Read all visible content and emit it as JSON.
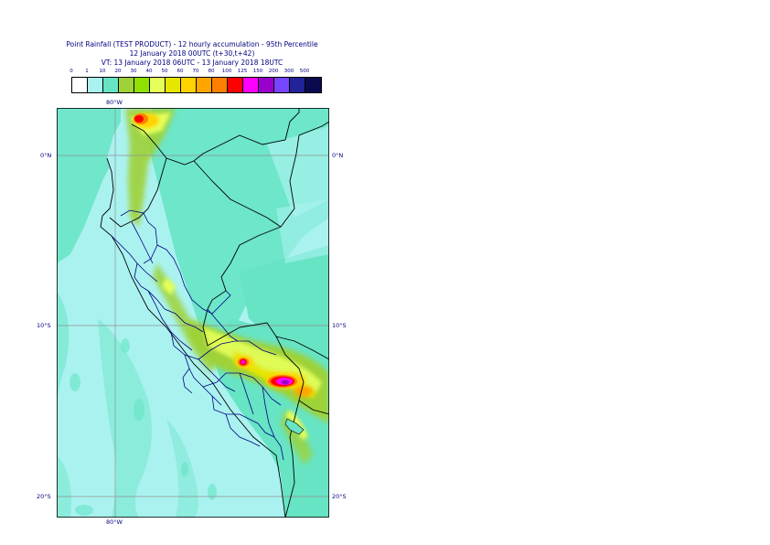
{
  "title": {
    "line1": "Point Rainfall (TEST PRODUCT) - 12 hourly accumulation - 95th Percentile",
    "line2": "12 January 2018 00UTC (t+30,t+42)",
    "line3": "VT: 13 January 2018 06UTC - 13 January 2018 18UTC"
  },
  "legend": {
    "labels": [
      "0",
      "1",
      "10",
      "20",
      "30",
      "40",
      "50",
      "60",
      "70",
      "80",
      "100",
      "125",
      "150",
      "200",
      "300",
      "500"
    ],
    "colors": [
      "#ffffff",
      "#aaf2f0",
      "#66e4c4",
      "#9ed237",
      "#8fe100",
      "#e6ff5a",
      "#e6e600",
      "#ffd200",
      "#ffa500",
      "#ff8000",
      "#ff0000",
      "#ff00ff",
      "#9900cc",
      "#7744ff",
      "#222299",
      "#0a0a50"
    ]
  },
  "map": {
    "lon_labels": {
      "top": "80°W",
      "bottom": "80°W"
    },
    "lat_labels": {
      "left": [
        "0°N",
        "10°S",
        "20°S"
      ],
      "right": [
        "0°N",
        "10°S",
        "20°S"
      ]
    },
    "colors": {
      "ocean": "#aaf2f0",
      "land_light": "#aaf2f0",
      "land_mid": "#66e4c4",
      "border": "#000000",
      "admin": "#000080",
      "grid": "#909090"
    }
  }
}
